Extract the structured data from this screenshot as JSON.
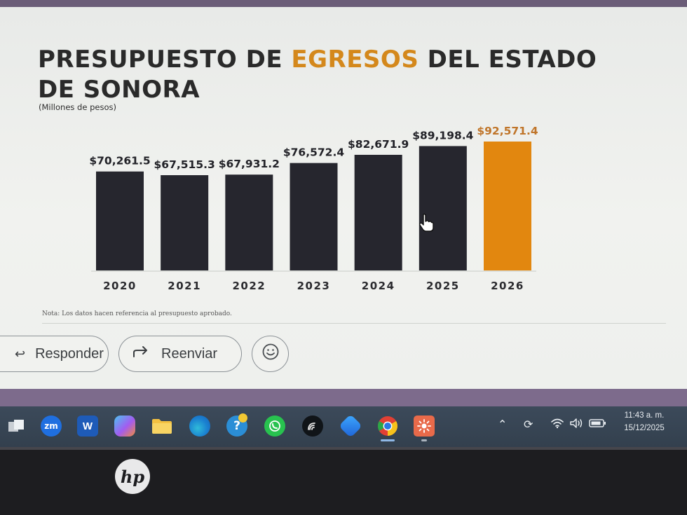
{
  "slide": {
    "title_part1": "PRESUPUESTO DE ",
    "title_accent": "EGRESOS",
    "title_part2": " DEL ESTADO",
    "title_line2": "DE SONORA",
    "subtitle": "(Millones de pesos)",
    "note": "Nota: Los datos hacen referencia al presupuesto aprobado."
  },
  "chart_data": {
    "type": "bar",
    "title": "PRESUPUESTO DE EGRESOS DEL ESTADO DE SONORA",
    "ylabel": "(Millones de pesos)",
    "categories": [
      "2020",
      "2021",
      "2022",
      "2023",
      "2024",
      "2025",
      "2026"
    ],
    "values": [
      70261.5,
      67515.3,
      67931.2,
      76572.4,
      82671.9,
      89198.4,
      92571.4
    ],
    "value_labels": [
      "$70,261.5",
      "$67,515.3",
      "$67,931.2",
      "$76,572.4",
      "$82,671.9",
      "$89,198.4",
      "$92,571.4"
    ],
    "highlight_index": 6,
    "ylim": [
      0,
      100000
    ],
    "colors": {
      "bar": "#26262e",
      "highlight": "#e2870f",
      "highlight_label": "#c0752a",
      "label": "#222228"
    },
    "grid": false,
    "legend": "none"
  },
  "email_actions": {
    "reply_label": "Responder",
    "forward_label": "Reenviar",
    "reply_icon": "reply-arrow-icon",
    "forward_icon": "forward-arrow-icon",
    "emoji_icon": "smiley-icon"
  },
  "taskbar": {
    "apps": [
      {
        "name": "Task View",
        "icon": "task-view-icon"
      },
      {
        "name": "Zoom",
        "icon": "zoom-icon",
        "text": "zm"
      },
      {
        "name": "Word",
        "icon": "word-icon",
        "text": "W"
      },
      {
        "name": "Copilot",
        "icon": "copilot-icon"
      },
      {
        "name": "File Explorer",
        "icon": "folder-icon"
      },
      {
        "name": "Edge",
        "icon": "edge-icon"
      },
      {
        "name": "Help",
        "icon": "help-icon",
        "text": "?"
      },
      {
        "name": "WhatsApp",
        "icon": "whatsapp-icon"
      },
      {
        "name": "App",
        "icon": "signal-icon"
      },
      {
        "name": "Copilot App",
        "icon": "copilot-app-icon"
      },
      {
        "name": "Chrome",
        "icon": "chrome-icon"
      },
      {
        "name": "App",
        "icon": "sun-app-icon"
      }
    ],
    "tray": {
      "time": "11:43 a. m.",
      "date": "15/12/2025",
      "icons": [
        "chevron-up-icon",
        "sync-icon",
        "wifi-icon",
        "volume-icon",
        "battery-icon"
      ]
    }
  },
  "hardware": {
    "logo_text": "hp"
  },
  "colors": {
    "screen_bg": "#eef0ed",
    "taskbar_bg": "#374452",
    "accent": "#d4881c"
  }
}
